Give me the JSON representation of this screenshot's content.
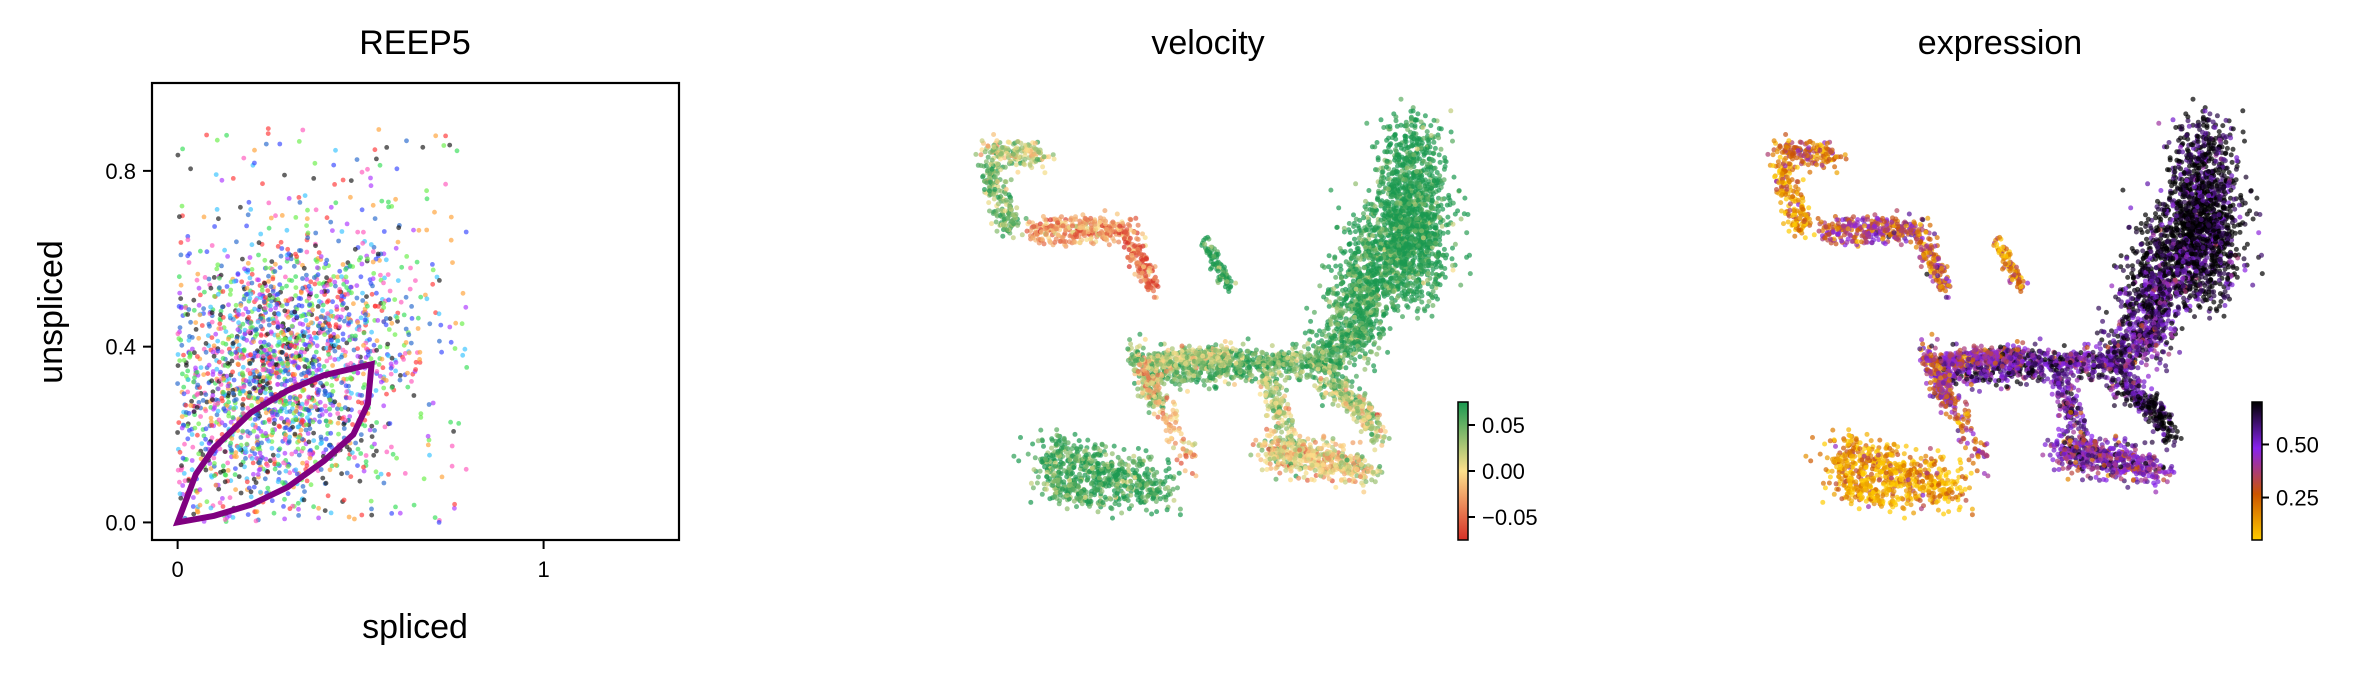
{
  "chart_data": [
    {
      "type": "scatter",
      "title": "REEP5",
      "xlabel": "spliced",
      "ylabel": "unspliced",
      "xlim": [
        -0.07,
        1.37
      ],
      "ylim": [
        -0.04,
        1.0
      ],
      "xticks": [
        "0",
        "1"
      ],
      "yticks": [
        "0.0",
        "0.4",
        "0.8"
      ],
      "grid": false,
      "legend": "none",
      "point_colors": [
        "#3344ff",
        "#ff3333",
        "#33c1ff",
        "#33dd55",
        "#aa33ff",
        "#ffa033",
        "#111111",
        "#ff55bb",
        "#2266cc",
        "#66ee44"
      ],
      "fit_curve": {
        "color": "#800080",
        "upper": [
          [
            0,
            0
          ],
          [
            0.05,
            0.11
          ],
          [
            0.1,
            0.17
          ],
          [
            0.2,
            0.25
          ],
          [
            0.3,
            0.3
          ],
          [
            0.4,
            0.335
          ],
          [
            0.53,
            0.36
          ]
        ],
        "lower": [
          [
            0,
            0
          ],
          [
            0.1,
            0.015
          ],
          [
            0.2,
            0.04
          ],
          [
            0.3,
            0.08
          ],
          [
            0.4,
            0.14
          ],
          [
            0.48,
            0.2
          ],
          [
            0.52,
            0.27
          ],
          [
            0.53,
            0.36
          ]
        ]
      }
    },
    {
      "type": "scatter",
      "title": "velocity",
      "colorbar": {
        "ticks": [
          "0.05",
          "0.00",
          "−0.05"
        ],
        "tick_values": [
          0.05,
          0.0,
          -0.05
        ],
        "range": [
          -0.075,
          0.075
        ],
        "colors": [
          "#d73027",
          "#fee08b",
          "#1a9850"
        ]
      }
    },
    {
      "type": "scatter",
      "title": "expression",
      "colorbar": {
        "ticks": [
          "0.50",
          "0.25"
        ],
        "tick_values": [
          0.5,
          0.25
        ],
        "range": [
          0.05,
          0.7
        ],
        "colors": [
          "#ffcc00",
          "#cc5500",
          "#8822ee",
          "#000000"
        ]
      }
    }
  ]
}
